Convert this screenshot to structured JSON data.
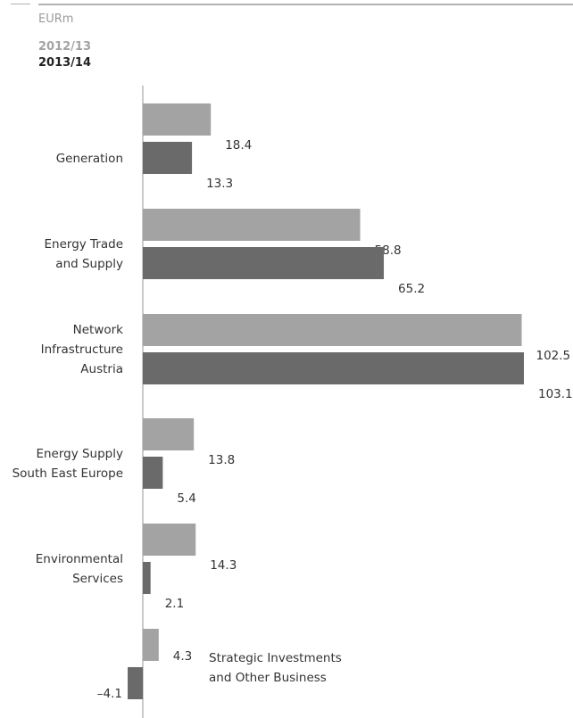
{
  "chart_data": {
    "type": "bar",
    "orientation": "horizontal",
    "unit": "EURm",
    "categories": [
      [
        "Generation"
      ],
      [
        "Energy Trade",
        "and Supply"
      ],
      [
        "Network",
        "Infrastructure",
        "Austria"
      ],
      [
        "Energy Supply",
        "South East Europe"
      ],
      [
        "Environmental",
        "Services"
      ],
      [
        "Strategic Investments",
        "and Other Business"
      ]
    ],
    "series": [
      {
        "name": "2012/13",
        "color": "#a3a3a3",
        "values": [
          18.4,
          58.8,
          102.5,
          13.8,
          14.3,
          4.3
        ],
        "labels": [
          "18.4",
          "58.8",
          "102.5",
          "13.8",
          "14.3",
          "4.3"
        ]
      },
      {
        "name": "2013/14",
        "color": "#6a6a6a",
        "values": [
          13.3,
          65.2,
          103.1,
          5.4,
          2.1,
          -4.1
        ],
        "labels": [
          "13.3",
          "65.2",
          "103.1",
          "5.4",
          "2.1",
          "–4.1"
        ]
      }
    ],
    "legend_placement": "top-left",
    "grid": false
  }
}
